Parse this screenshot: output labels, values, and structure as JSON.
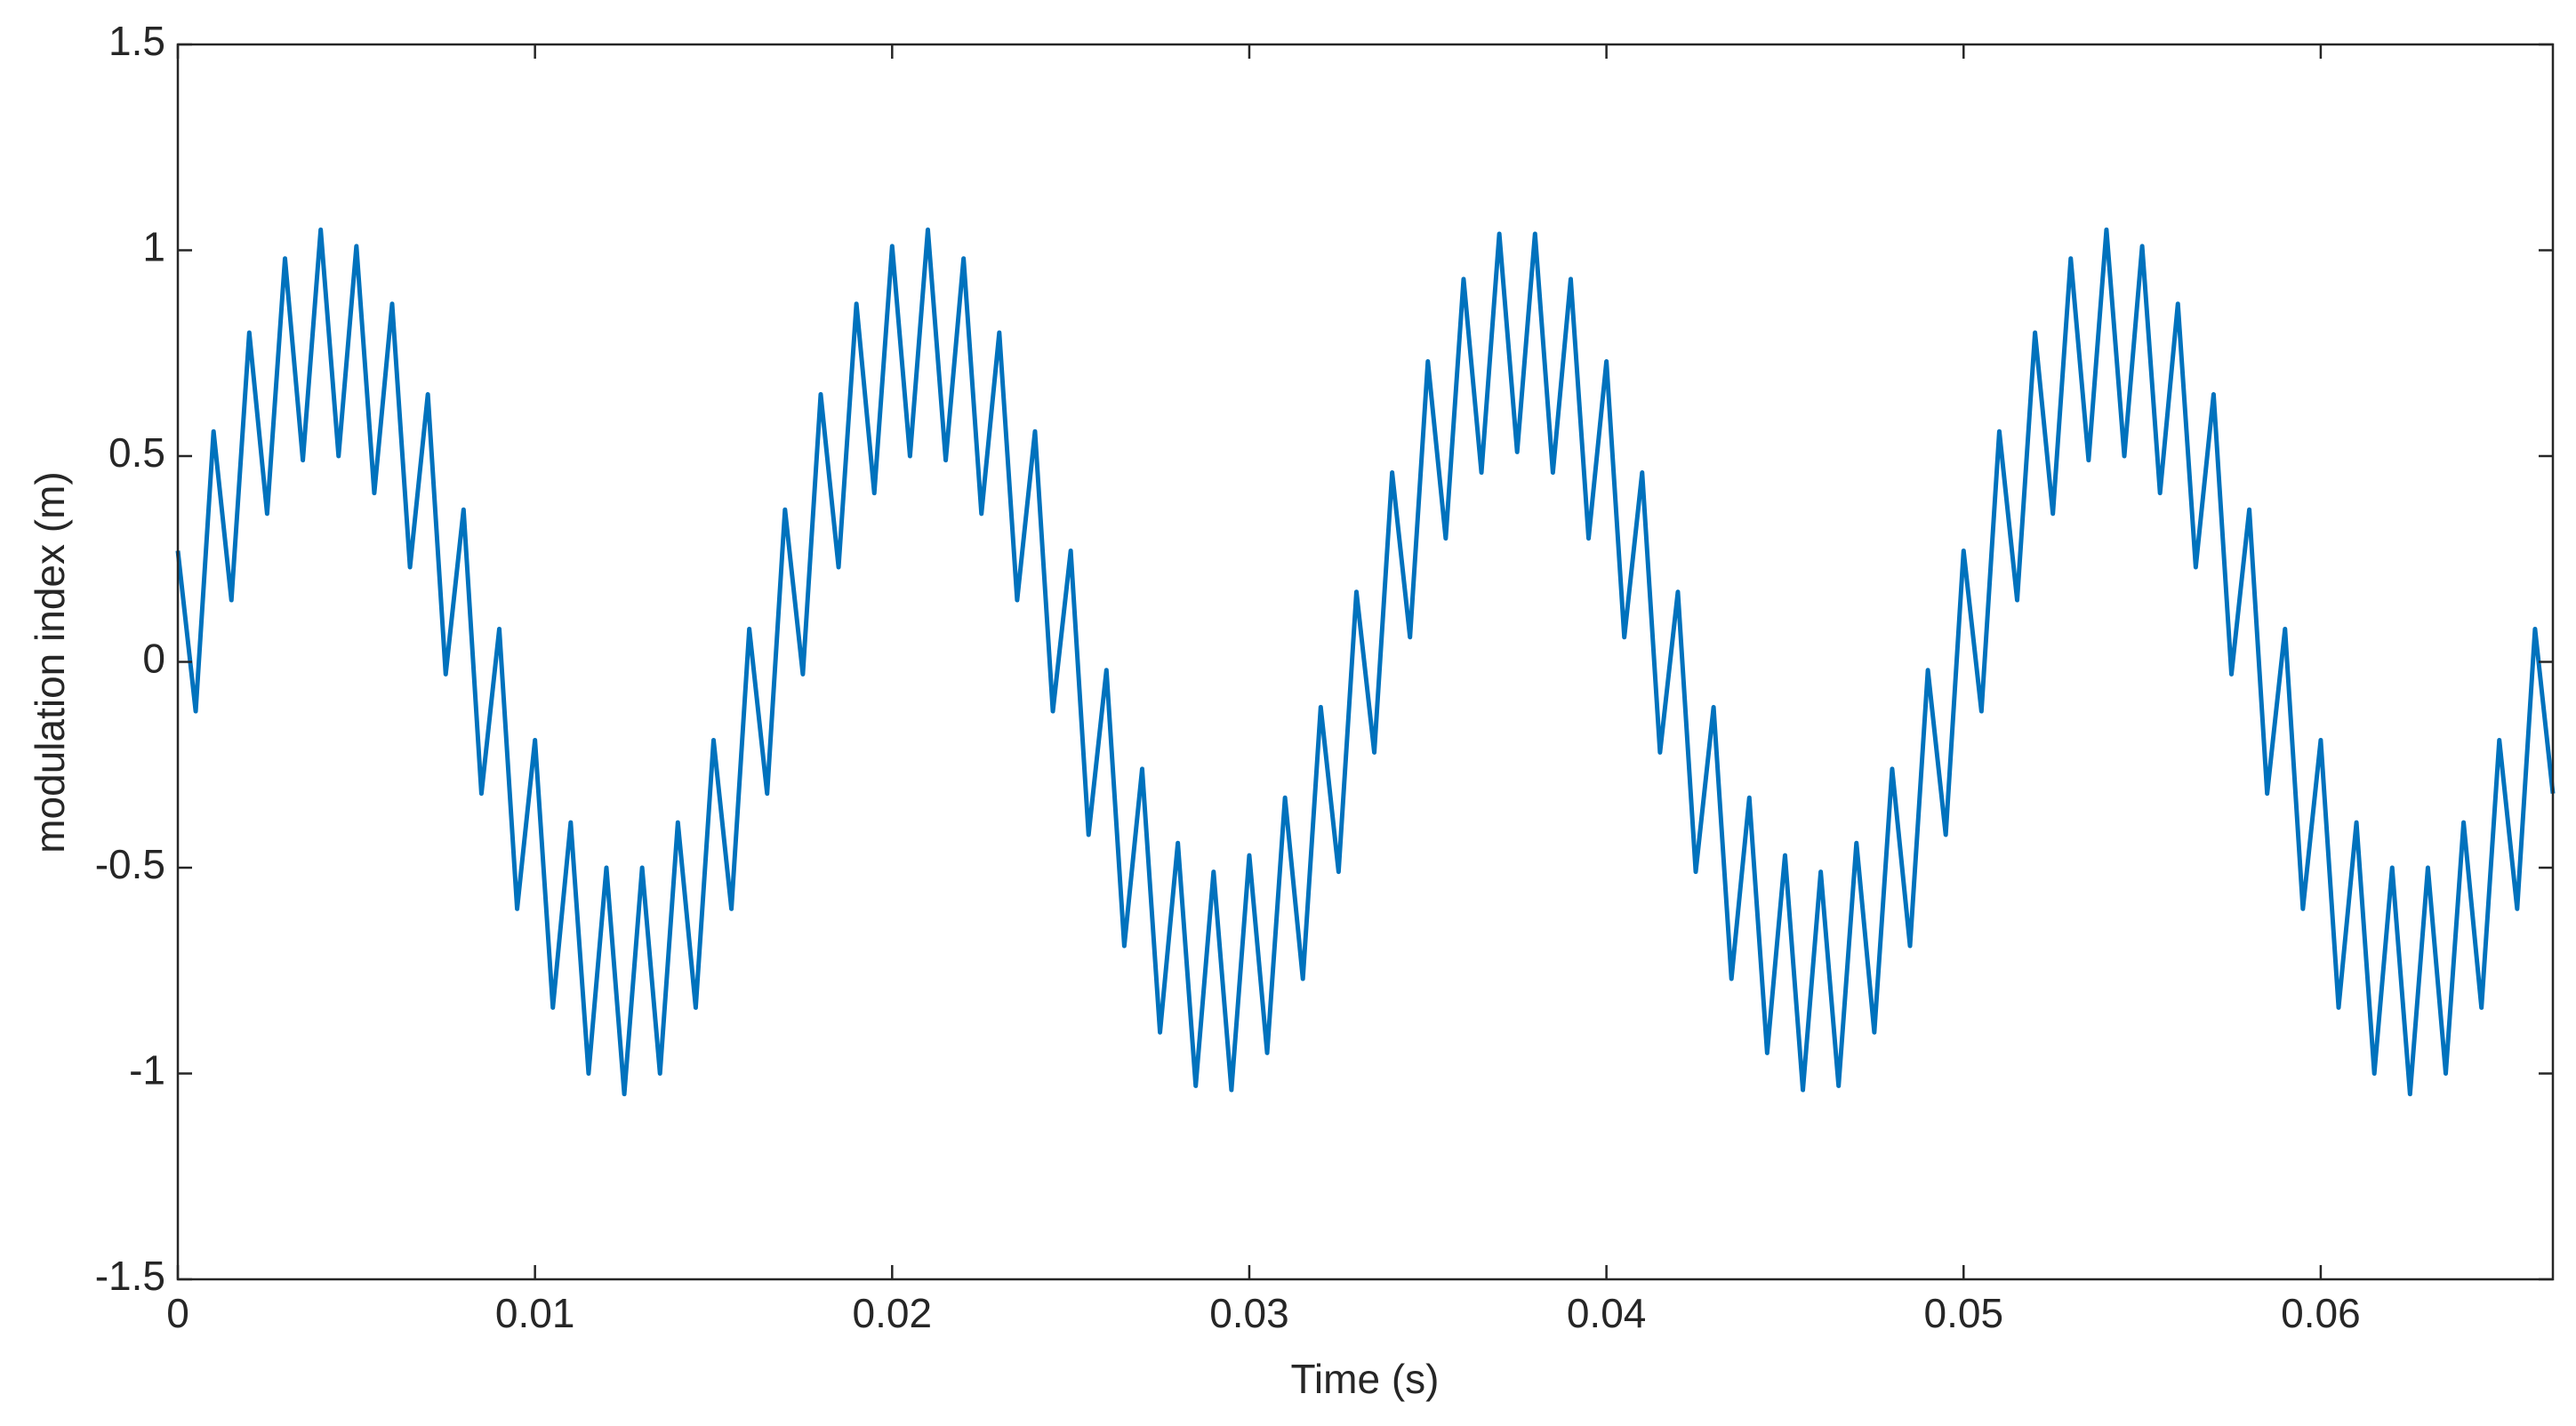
{
  "chart_data": {
    "type": "line",
    "x_label": "Time (s)",
    "y_label": "modulation index (m)",
    "color": "#0072bd",
    "box": true,
    "grid": false,
    "x": [
      0,
      0.0005,
      0.001,
      0.0015,
      0.002,
      0.0025,
      0.003,
      0.0035,
      0.004,
      0.0045,
      0.005,
      0.0055,
      0.006,
      0.0065,
      0.007,
      0.0075,
      0.008,
      0.0085,
      0.009,
      0.0095,
      0.01,
      0.0105,
      0.011,
      0.0115,
      0.012,
      0.0125,
      0.013,
      0.0135,
      0.014,
      0.0145,
      0.015,
      0.0155,
      0.016,
      0.0165,
      0.017,
      0.0175,
      0.018,
      0.0185,
      0.019,
      0.0195,
      0.02,
      0.0205,
      0.021,
      0.0215,
      0.022,
      0.0225,
      0.023,
      0.0235,
      0.024,
      0.0245,
      0.025,
      0.0255,
      0.026,
      0.0265,
      0.027,
      0.0275,
      0.028,
      0.0285,
      0.029,
      0.0295,
      0.03,
      0.0305,
      0.031,
      0.0315,
      0.032,
      0.0325,
      0.033,
      0.0335,
      0.034,
      0.0345,
      0.035,
      0.0355,
      0.036,
      0.0365,
      0.037,
      0.0375,
      0.038,
      0.0385,
      0.039,
      0.0395,
      0.04,
      0.0405,
      0.041,
      0.0415,
      0.042,
      0.0425,
      0.043,
      0.0435,
      0.044,
      0.0445,
      0.045,
      0.0455,
      0.046,
      0.0465,
      0.047,
      0.0475,
      0.048,
      0.0485,
      0.049,
      0.0495,
      0.05,
      0.0505,
      0.051,
      0.0515,
      0.052,
      0.0525,
      0.053,
      0.0535,
      0.054,
      0.0545,
      0.055,
      0.0555,
      0.056,
      0.0565,
      0.057,
      0.0575,
      0.058,
      0.0585,
      0.059,
      0.0595,
      0.06,
      0.0605,
      0.061,
      0.0615,
      0.062,
      0.0625,
      0.063,
      0.0635,
      0.064,
      0.0645,
      0.065,
      0.0655,
      0.066,
      0.0665
    ],
    "values": [
      0.27,
      -0.12,
      0.56,
      0.15,
      0.8,
      0.36,
      0.98,
      0.49,
      1.05,
      0.5,
      1.01,
      0.41,
      0.87,
      0.23,
      0.65,
      -0.03,
      0.37,
      -0.32,
      0.08,
      -0.6,
      -0.19,
      -0.84,
      -0.39,
      -1.0,
      -0.5,
      -1.05,
      -0.5,
      -1.0,
      -0.39,
      -0.84,
      -0.19,
      -0.6,
      0.08,
      -0.32,
      0.37,
      -0.03,
      0.65,
      0.23,
      0.87,
      0.41,
      1.01,
      0.5,
      1.05,
      0.49,
      0.98,
      0.36,
      0.8,
      0.15,
      0.56,
      -0.12,
      0.27,
      -0.42,
      -0.02,
      -0.69,
      -0.26,
      -0.9,
      -0.44,
      -1.03,
      -0.51,
      -1.04,
      -0.47,
      -0.95,
      -0.33,
      -0.77,
      -0.11,
      -0.51,
      0.17,
      -0.22,
      0.46,
      0.06,
      0.73,
      0.3,
      0.93,
      0.46,
      1.04,
      0.51,
      1.04,
      0.46,
      0.93,
      0.3,
      0.73,
      0.06,
      0.46,
      -0.22,
      0.17,
      -0.51,
      -0.11,
      -0.77,
      -0.33,
      -0.95,
      -0.47,
      -1.04,
      -0.51,
      -1.03,
      -0.44,
      -0.9,
      -0.26,
      -0.69,
      -0.02,
      -0.42,
      0.27,
      -0.12,
      0.56,
      0.15,
      0.8,
      0.36,
      0.98,
      0.49,
      1.05,
      0.5,
      1.01,
      0.41,
      0.87,
      0.23,
      0.65,
      -0.03,
      0.37,
      -0.32,
      0.08,
      -0.6,
      -0.19,
      -0.84,
      -0.39,
      -1.0,
      -0.5,
      -1.05,
      -0.5,
      -1.0,
      -0.39,
      -0.84,
      -0.19,
      -0.6,
      0.08,
      -0.32
    ],
    "xlim": [
      0,
      0.0665
    ],
    "xticks": [
      0,
      0.01,
      0.02,
      0.03,
      0.04,
      0.05,
      0.06
    ],
    "ylim": [
      -1.5,
      1.5
    ],
    "yticks": [
      -1.5,
      -1,
      -0.5,
      0,
      0.5,
      1,
      1.5
    ]
  }
}
